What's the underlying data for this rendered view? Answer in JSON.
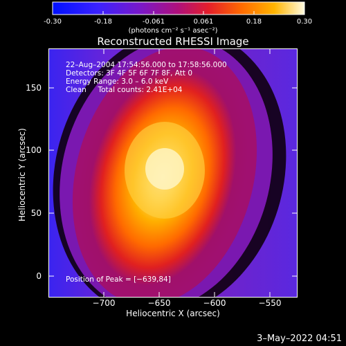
{
  "colorbar": {
    "ticks": [
      "-0.30",
      "-0.18",
      "-0.061",
      "0.061",
      "0.18",
      "0.30"
    ],
    "units": "(photons cm⁻² s⁻¹ asec⁻²)"
  },
  "image": {
    "title": "Reconstructed RHESSI Image",
    "x_label": "Heliocentric X (arcsec)",
    "y_label": "Heliocentric Y (arcsec)",
    "x_ticks": [
      "−700",
      "−650",
      "−600",
      "−550"
    ],
    "y_ticks": [
      "150",
      "100",
      "50",
      "0"
    ],
    "info_lines": [
      "22–Aug–2004 17:54:56.000 to 17:58:56.000",
      "Detectors: 3F 4F 5F 6F 7F 8F, Att 0",
      "Energy Range: 3.0 – 6.0 keV",
      "Clean     Total counts: 2.41E+04"
    ],
    "peak_label": "Position of Peak = [−639,84]"
  },
  "footer": {
    "date": "3–May–2022 04:51"
  }
}
